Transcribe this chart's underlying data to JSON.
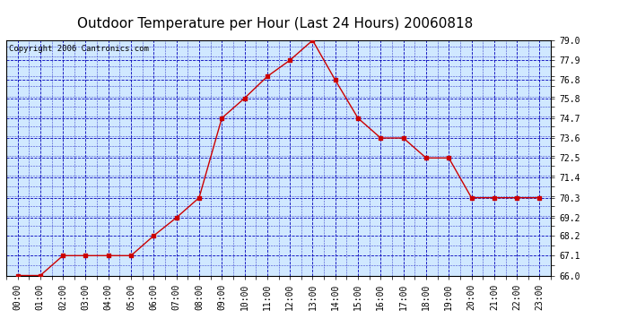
{
  "title": "Outdoor Temperature per Hour (Last 24 Hours) 20060818",
  "copyright_text": "Copyright 2006 Cantronics.com",
  "hours": [
    "00:00",
    "01:00",
    "02:00",
    "03:00",
    "04:00",
    "05:00",
    "06:00",
    "07:00",
    "08:00",
    "09:00",
    "10:00",
    "11:00",
    "12:00",
    "13:00",
    "14:00",
    "15:00",
    "16:00",
    "17:00",
    "18:00",
    "19:00",
    "20:00",
    "21:00",
    "22:00",
    "23:00"
  ],
  "temperatures": [
    66.0,
    66.0,
    67.1,
    67.1,
    67.1,
    67.1,
    68.2,
    69.2,
    70.3,
    74.7,
    75.8,
    77.0,
    77.9,
    79.0,
    76.8,
    74.7,
    73.6,
    73.6,
    72.5,
    72.5,
    70.3,
    70.3,
    70.3,
    70.3
  ],
  "ylim": [
    66.0,
    79.0
  ],
  "yticks": [
    66.0,
    67.1,
    68.2,
    69.2,
    70.3,
    71.4,
    72.5,
    73.6,
    74.7,
    75.8,
    76.8,
    77.9,
    79.0
  ],
  "line_color": "#cc0000",
  "marker": "s",
  "marker_size": 2.5,
  "grid_color": "#0000bb",
  "background_color": "#d0e8ff",
  "outer_background": "#ffffff",
  "title_fontsize": 11,
  "tick_fontsize": 7,
  "copyright_fontsize": 6.5
}
